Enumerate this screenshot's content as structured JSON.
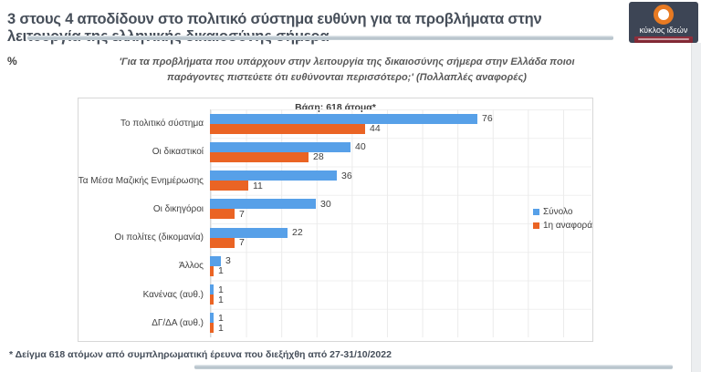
{
  "header": {
    "title": "3 στους 4 αποδίδουν στο πολιτικό σύστημα ευθύνη για τα προβλήματα στην λειτουργία της ελληνικής δικαιοσύνης σήμερα",
    "logo_text": "κύκλος ιδεών",
    "logo_colors": {
      "background": "#3d4555",
      "ring": "#e87a22",
      "tagline_bar": "#8e2f3c"
    }
  },
  "percent_label": "%",
  "question": "'Για τα προβλήματα που υπάρχουν στην λειτουργία της δικαιοσύνης σήμερα στην Ελλάδα ποιοι παράγοντες πιστεύετε ότι ευθύνονται περισσότερο;' (Πολλαπλές αναφορές)",
  "chart_data": {
    "type": "bar",
    "orientation": "horizontal",
    "base_label": "Βάση: 618 άτομα*",
    "categories": [
      "Το πολιτικό σύστημα",
      "Οι δικαστικοί",
      "Τα Μέσα Μαζικής Ενημέρωσης",
      "Οι δικηγόροι",
      "Οι πολίτες (δικομανία)",
      "Άλλος",
      "Κανένας (αυθ.)",
      "ΔΓ/ΔΑ (αυθ.)"
    ],
    "series": [
      {
        "name": "Σύνολο",
        "color": "#57a0e8",
        "values": [
          76,
          40,
          36,
          30,
          22,
          3,
          1,
          1
        ]
      },
      {
        "name": "1η αναφορά",
        "color": "#ea6424",
        "values": [
          44,
          28,
          11,
          7,
          7,
          1,
          1,
          1
        ]
      }
    ],
    "xlim": [
      0,
      108
    ],
    "gridline_step": 10,
    "grid": "on",
    "value_labels": "outside-end",
    "legend_position": "right-middle",
    "units": "%"
  },
  "footnote": "* Δείγμα 618 ατόμων από συμπληρωματική έρευνα που διεξήχθη από 27-31/10/2022"
}
